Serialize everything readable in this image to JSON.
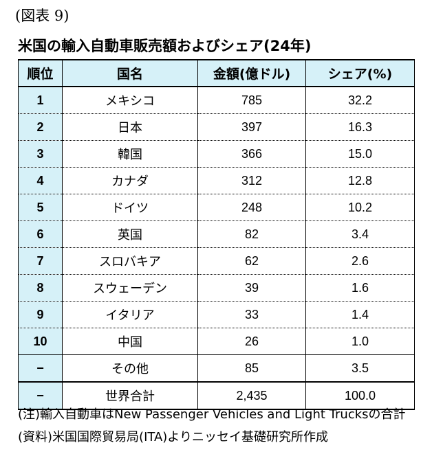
{
  "figure_label": "(図表 9)",
  "title": "米国の輸入自動車販売額およびシェア(24年)",
  "table": {
    "headers": {
      "rank": "順位",
      "country": "国名",
      "amount": "金額(億ドル)",
      "share": "シェア(%)"
    },
    "rows": [
      {
        "rank": "1",
        "country": "メキシコ",
        "amount": "785",
        "share": "32.2"
      },
      {
        "rank": "2",
        "country": "日本",
        "amount": "397",
        "share": "16.3"
      },
      {
        "rank": "3",
        "country": "韓国",
        "amount": "366",
        "share": "15.0"
      },
      {
        "rank": "4",
        "country": "カナダ",
        "amount": "312",
        "share": "12.8"
      },
      {
        "rank": "5",
        "country": "ドイツ",
        "amount": "248",
        "share": "10.2"
      },
      {
        "rank": "6",
        "country": "英国",
        "amount": "82",
        "share": "3.4"
      },
      {
        "rank": "7",
        "country": "スロバキア",
        "amount": "62",
        "share": "2.6"
      },
      {
        "rank": "8",
        "country": "スウェーデン",
        "amount": "39",
        "share": "1.6"
      },
      {
        "rank": "9",
        "country": "イタリア",
        "amount": "33",
        "share": "1.4"
      },
      {
        "rank": "10",
        "country": "中国",
        "amount": "26",
        "share": "1.0"
      }
    ],
    "other": {
      "rank": "−",
      "country": "その他",
      "amount": "85",
      "share": "3.5"
    },
    "total": {
      "rank": "−",
      "country": "世界合計",
      "amount": "2,435",
      "share": "100.0"
    }
  },
  "notes": {
    "note": "(注)輸入自動車はNew Passenger Vehicles and Light Trucksの合計",
    "source": "(資料)米国国際貿易局(ITA)よりニッセイ基礎研究所作成"
  },
  "colors": {
    "header_bg": "#d6f1f8",
    "rank_bg": "#d6f1f8"
  }
}
